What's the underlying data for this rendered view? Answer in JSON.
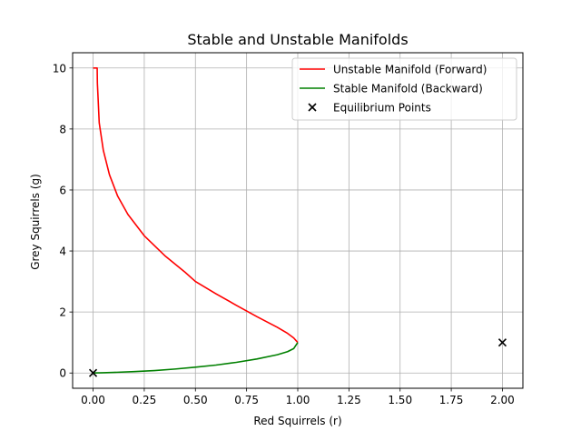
{
  "chart_data": {
    "type": "line",
    "title": "Stable and Unstable Manifolds",
    "xlabel": "Red Squirrels (r)",
    "ylabel": "Grey Squirrels (g)",
    "xlim": [
      -0.1,
      2.1
    ],
    "ylim": [
      -0.5,
      10.5
    ],
    "xticks": [
      0.0,
      0.25,
      0.5,
      0.75,
      1.0,
      1.25,
      1.5,
      1.75,
      2.0
    ],
    "xtick_labels": [
      "0.00",
      "0.25",
      "0.50",
      "0.75",
      "1.00",
      "1.25",
      "1.50",
      "1.75",
      "2.00"
    ],
    "yticks": [
      0,
      2,
      4,
      6,
      8,
      10
    ],
    "ytick_labels": [
      "0",
      "2",
      "4",
      "6",
      "8",
      "10"
    ],
    "grid": true,
    "legend_position": "top-right",
    "series": [
      {
        "name": "Unstable Manifold (Forward)",
        "kind": "line",
        "color": "#ff0000",
        "x": [
          0.0,
          0.02,
          0.021,
          0.03,
          0.05,
          0.08,
          0.12,
          0.17,
          0.25,
          0.35,
          0.45,
          0.5,
          0.6,
          0.7,
          0.8,
          0.9,
          0.95,
          0.98,
          1.0
        ],
        "y": [
          10.0,
          10.0,
          9.5,
          8.2,
          7.3,
          6.5,
          5.8,
          5.2,
          4.5,
          3.85,
          3.3,
          3.0,
          2.6,
          2.22,
          1.85,
          1.5,
          1.3,
          1.15,
          1.0
        ]
      },
      {
        "name": "Stable Manifold (Backward)",
        "kind": "line",
        "color": "#008000",
        "x": [
          0.0,
          0.05,
          0.1,
          0.2,
          0.3,
          0.4,
          0.5,
          0.6,
          0.7,
          0.8,
          0.9,
          0.95,
          0.98,
          1.0
        ],
        "y": [
          0.0,
          0.01,
          0.02,
          0.045,
          0.08,
          0.13,
          0.19,
          0.26,
          0.35,
          0.46,
          0.6,
          0.7,
          0.8,
          1.0
        ]
      },
      {
        "name": "Equilibrium Points",
        "kind": "scatter",
        "marker": "x",
        "color": "#000000",
        "x": [
          0.0,
          2.0
        ],
        "y": [
          0.0,
          1.0
        ]
      }
    ]
  }
}
